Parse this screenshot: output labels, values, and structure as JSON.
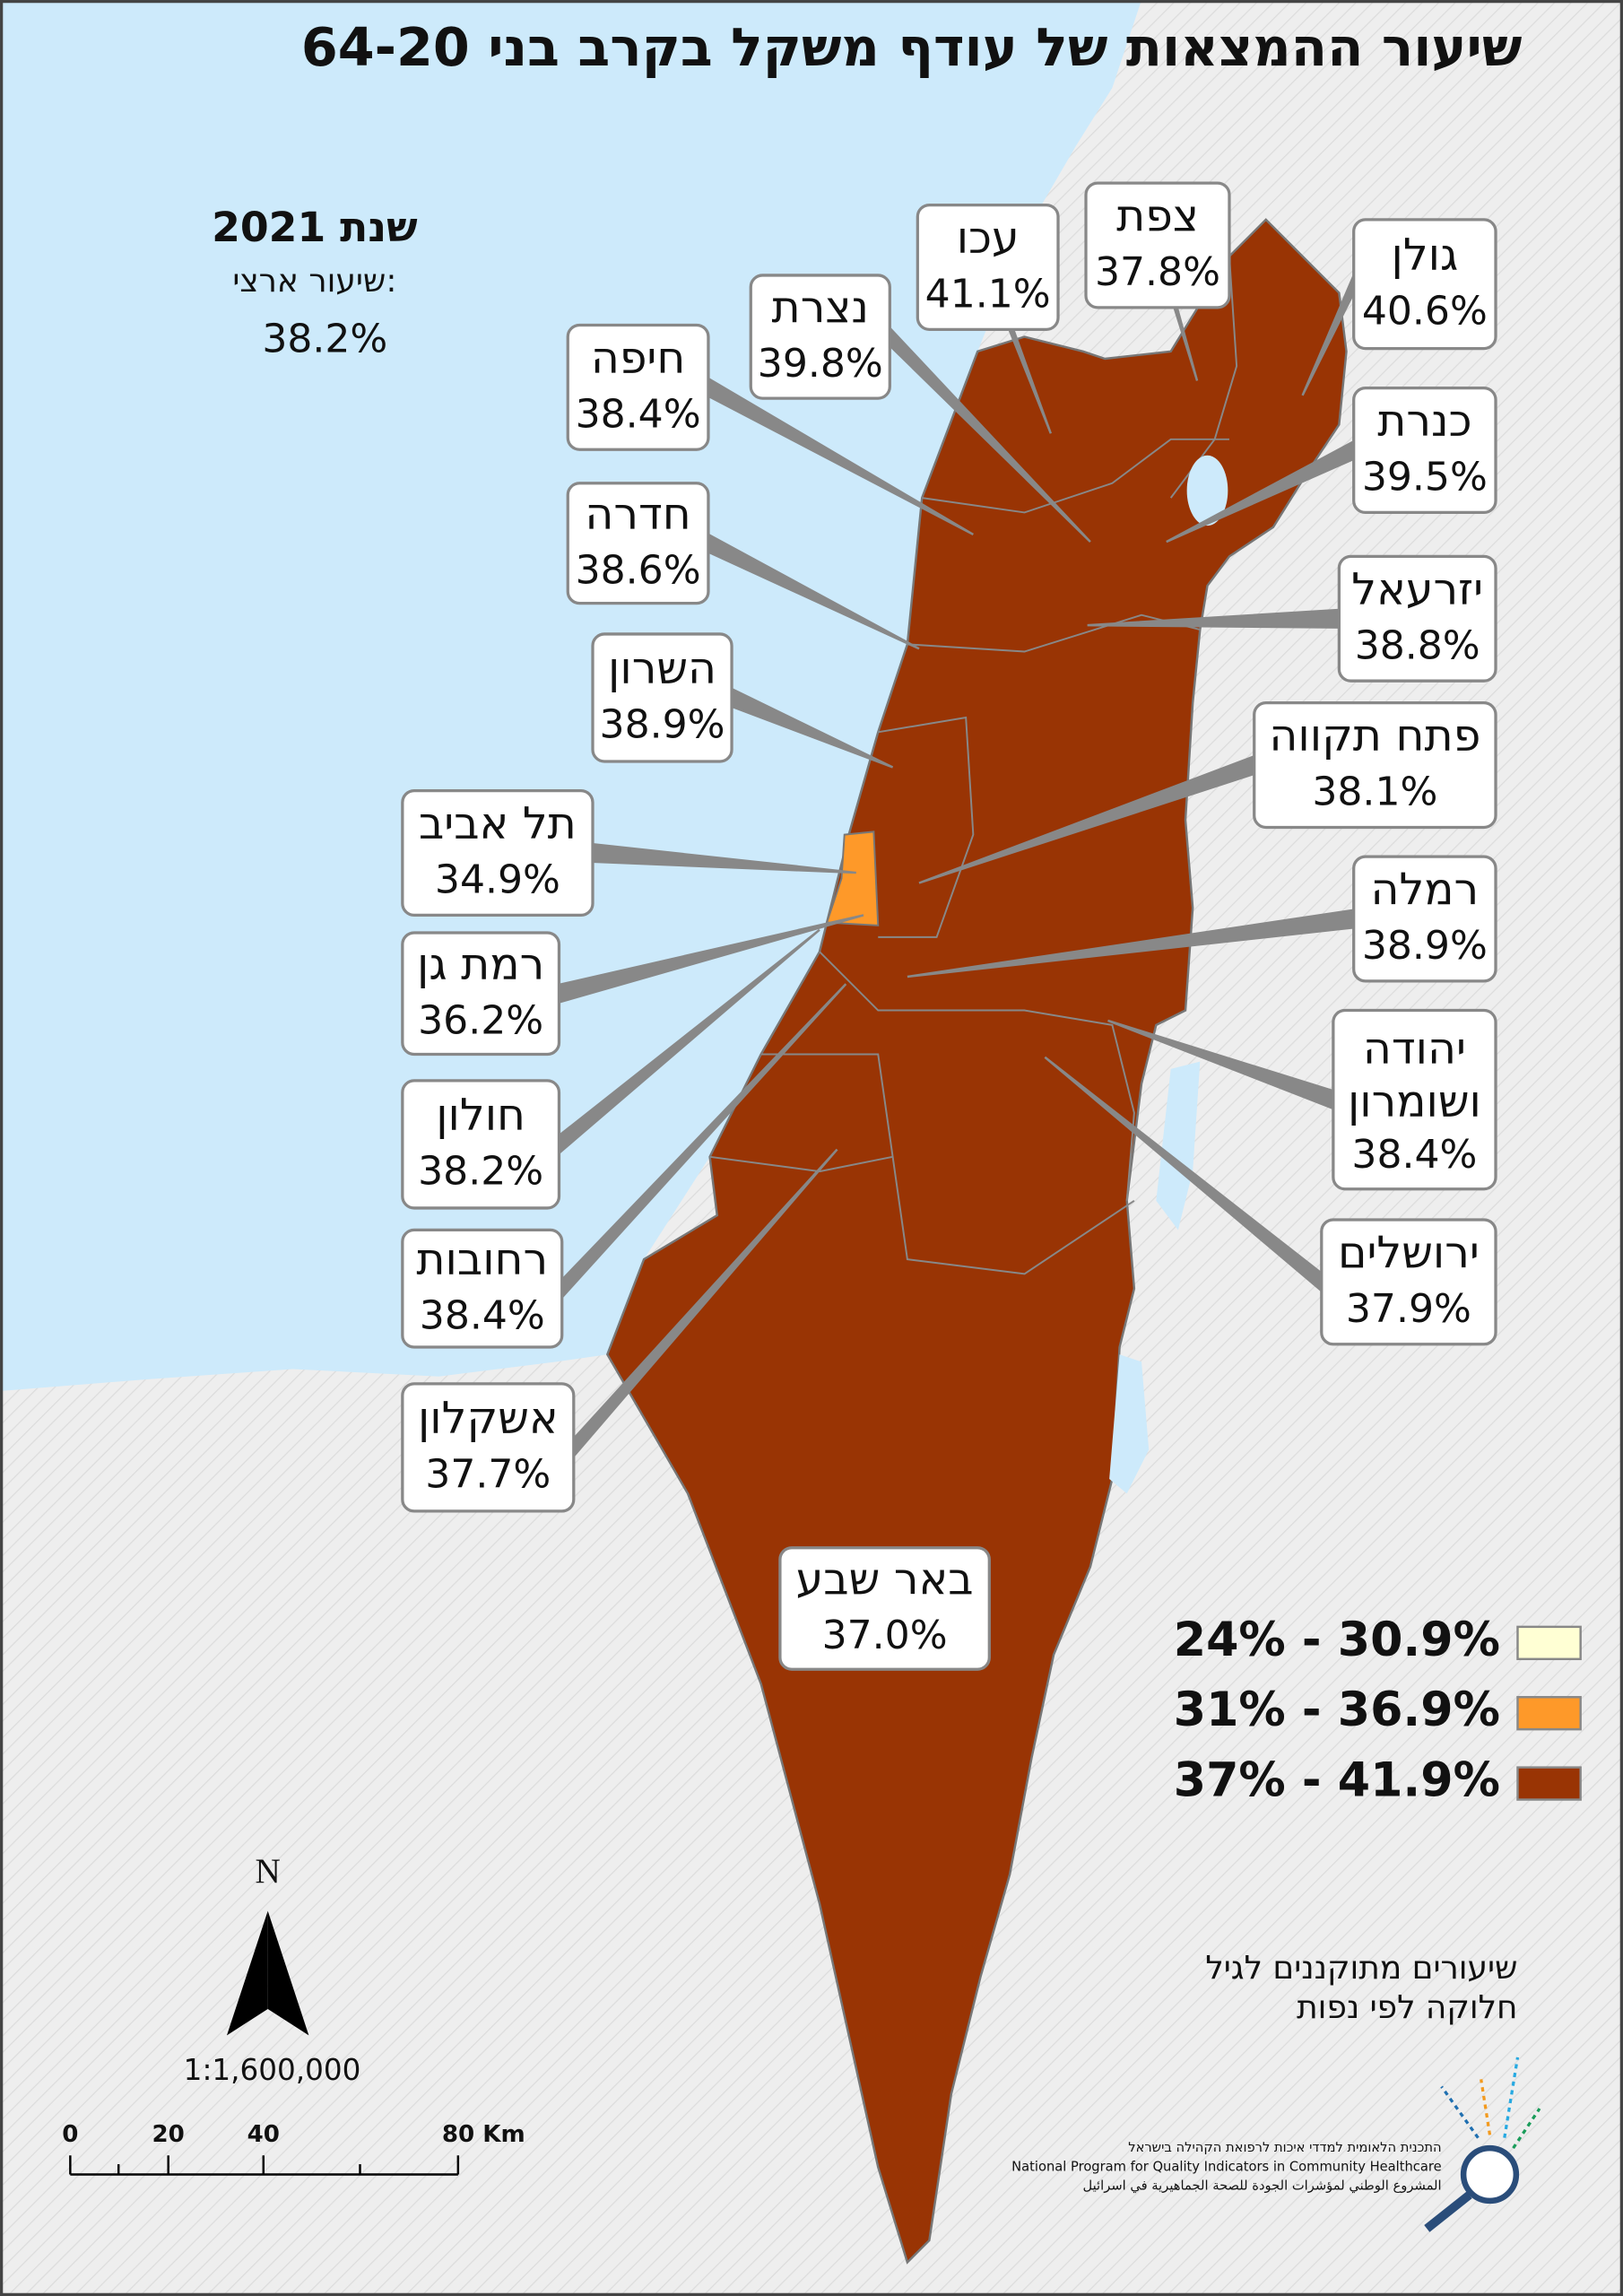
{
  "title": "שיעור ההמצאות של עודף משקל בקרב בני 64-20",
  "year": "שנת 2021",
  "national": {
    "label": "שיעור ארצי:",
    "value": "38.2%"
  },
  "regions": [
    {
      "name": "צפת",
      "value": "37.8%"
    },
    {
      "name": "עכו",
      "value": "41.1%"
    },
    {
      "name": "גולן",
      "value": "40.6%"
    },
    {
      "name": "נצרת",
      "value": "39.8%"
    },
    {
      "name": "חיפה",
      "value": "38.4%"
    },
    {
      "name": "כנרת",
      "value": "39.5%"
    },
    {
      "name": "חדרה",
      "value": "38.6%"
    },
    {
      "name": "יזרעאל",
      "value": "38.8%"
    },
    {
      "name": "השרון",
      "value": "38.9%"
    },
    {
      "name": "פתח תקווה",
      "value": "38.1%"
    },
    {
      "name": "תל אביב",
      "value": "34.9%"
    },
    {
      "name": "רמלה",
      "value": "38.9%"
    },
    {
      "name": "רמת גן",
      "value": "36.2%"
    },
    {
      "name": "יהודה ושומרון",
      "value": "38.4%"
    },
    {
      "name": "חולון",
      "value": "38.2%"
    },
    {
      "name": "ירושלים",
      "value": "37.9%"
    },
    {
      "name": "רחובות",
      "value": "38.4%"
    },
    {
      "name": "אשקלון",
      "value": "37.7%"
    },
    {
      "name": "באר שבע",
      "value": "37.0%"
    }
  ],
  "legend": [
    {
      "label": "24% - 30.9%",
      "color": "#ffffd4"
    },
    {
      "label": "31% - 36.9%",
      "color": "#fe9929"
    },
    {
      "label": "37% - 41.9%",
      "color": "#993404"
    }
  ],
  "note": [
    "שיעורים מתוקננים לגיל",
    "חלוקה לפי נפות"
  ],
  "north": "N",
  "scale": "1:1,600,000",
  "scale_bar": [
    "0",
    "20",
    "40",
    "80 Km"
  ],
  "logo": [
    "התכנית הלאומית למדדי איכות לרפואת הקהילה בישראל",
    "National Program for Quality Indicators in Community Healthcare",
    "المشروع الوطني لمؤشرات الجودة للصحة الجماهيرية في اسرائيل"
  ]
}
